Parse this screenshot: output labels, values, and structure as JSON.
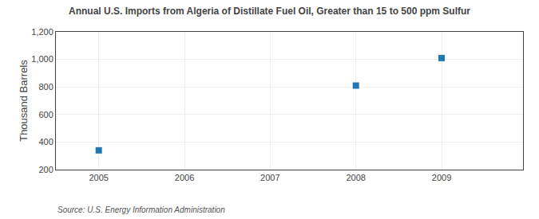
{
  "chart_data": {
    "type": "scatter",
    "title": "Annual U.S. Imports from Algeria of Distillate Fuel Oil, Greater than 15 to 500 ppm Sulfur",
    "ylabel": "Thousand Barrels",
    "source": "Source: U.S. Energy Information Administration",
    "x": [
      2005,
      2006,
      2007,
      2008,
      2009
    ],
    "values": [
      340,
      null,
      null,
      810,
      1010
    ],
    "marker": "square",
    "xlim": [
      2004.5,
      2009.95
    ],
    "xticks": [
      2005,
      2006,
      2007,
      2008,
      2009
    ],
    "ylim": [
      200,
      1200
    ],
    "yticks": [
      200,
      400,
      600,
      800,
      {
        "value": 1000,
        "label": "1,000"
      },
      {
        "value": 1200,
        "label": "1,200"
      }
    ],
    "grid": true
  }
}
